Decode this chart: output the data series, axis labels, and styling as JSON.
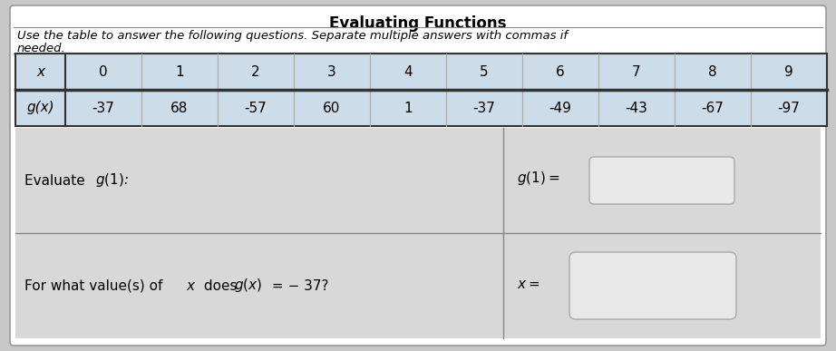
{
  "title": "Evaluating Functions",
  "subtitle_line1": "Use the table to answer the following questions. Separate multiple answers with commas if",
  "subtitle_line2": "needed.",
  "x_label": "x",
  "gx_label": "g(x)",
  "x_values": [
    "0",
    "1",
    "2",
    "3",
    "4",
    "5",
    "6",
    "7",
    "8",
    "9"
  ],
  "gx_values": [
    "-37",
    "68",
    "-57",
    "60",
    "1",
    "-37",
    "-49",
    "-43",
    "-67",
    "-97"
  ],
  "question1_left": "Evaluate g(1):",
  "question1_right": "g(1) =",
  "question2_left": "For what value(s) of x does g(x) = − 37?",
  "question2_right": "x =",
  "outer_bg": "#c8c8c8",
  "card_bg": "#f0f0f0",
  "card_border": "#999999",
  "header_row_color": "#ccdce8",
  "gx_row_color": "#ccdce8",
  "border_dark": "#333333",
  "border_light": "#aaaaaa",
  "divider_color": "#888888",
  "answer_box_color": "#e8e8e8",
  "answer_box_border": "#aaaaaa",
  "q_section_bg": "#d8d8d8"
}
